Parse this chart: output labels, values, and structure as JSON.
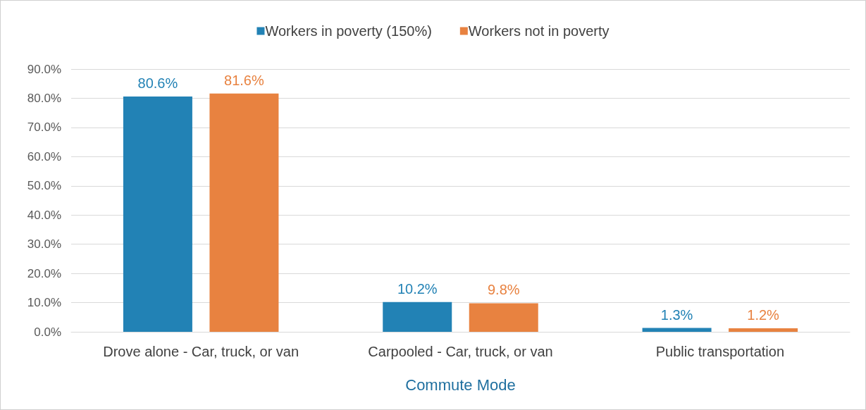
{
  "chart_data": {
    "type": "bar",
    "xlabel": "Commute Mode",
    "categories": [
      "Drove alone - Car, truck, or van",
      "Carpooled - Car, truck, or van",
      "Public transportation"
    ],
    "series": [
      {
        "name": "Workers in poverty (150%)",
        "color": "#2282b5",
        "values": [
          80.6,
          10.2,
          1.3
        ],
        "value_labels": [
          "80.6%",
          "10.2%",
          "1.3%"
        ]
      },
      {
        "name": "Workers not in poverty",
        "color": "#e88240",
        "values": [
          81.6,
          9.8,
          1.2
        ],
        "value_labels": [
          "81.6%",
          "9.8%",
          "1.2%"
        ]
      }
    ],
    "ylim": [
      0,
      90
    ],
    "yticks": [
      {
        "value": 0,
        "label": "0.0%"
      },
      {
        "value": 10,
        "label": "10.0%"
      },
      {
        "value": 20,
        "label": "20.0%"
      },
      {
        "value": 30,
        "label": "30.0%"
      },
      {
        "value": 40,
        "label": "40.0%"
      },
      {
        "value": 50,
        "label": "50.0%"
      },
      {
        "value": 60,
        "label": "60.0%"
      },
      {
        "value": 70,
        "label": "70.0%"
      },
      {
        "value": 80,
        "label": "80.0%"
      },
      {
        "value": 90,
        "label": "90.0%"
      }
    ],
    "grid": "y",
    "legend": "top"
  }
}
